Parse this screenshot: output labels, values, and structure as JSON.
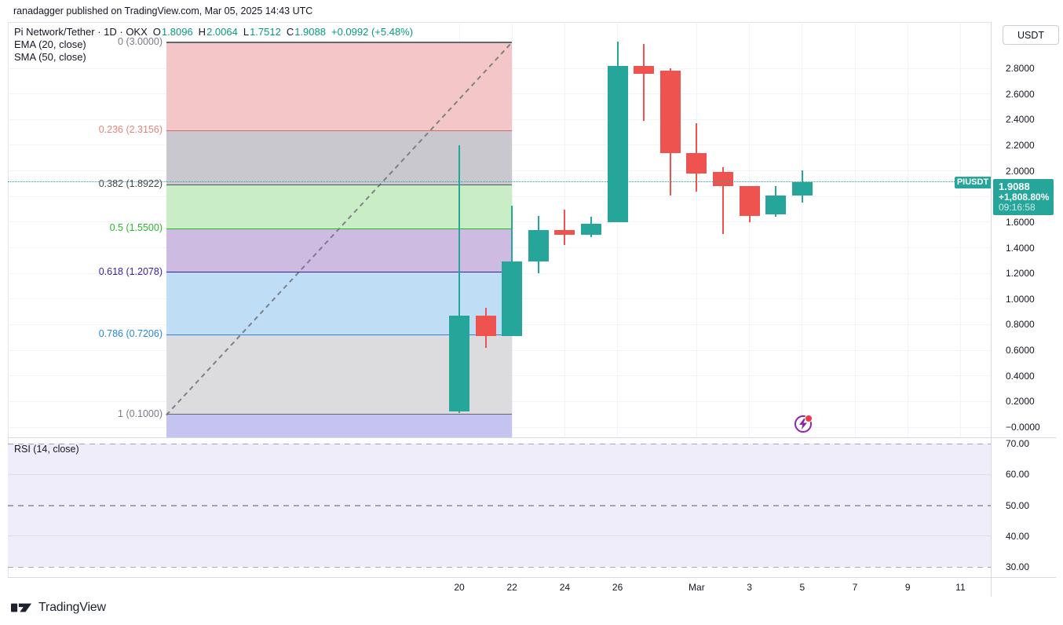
{
  "attribution": "ranadagger published on TradingView.com, Mar 05, 2025 14:43 UTC",
  "legend": {
    "symbol_text": "Pi Network/Tether · 1D · OKX",
    "o_label": "O",
    "o_value": "1.8096",
    "h_label": "H",
    "h_value": "2.0064",
    "l_label": "L",
    "l_value": "1.7512",
    "c_label": "C",
    "c_value": "1.9088",
    "change_text": "+0.0992 (+5.48%)",
    "ema_label": "EMA (20, close)",
    "sma_label": "SMA (50, close)"
  },
  "price_label": {
    "symbol": "PIUSDT",
    "price": "1.9088",
    "change_pct": "+1,808.80%",
    "countdown": "09:16:58"
  },
  "price_axis": {
    "currency": "USDT",
    "ticks": [
      {
        "label": "2.8000",
        "value": 2.8
      },
      {
        "label": "2.6000",
        "value": 2.6
      },
      {
        "label": "2.4000",
        "value": 2.4
      },
      {
        "label": "2.2000",
        "value": 2.2
      },
      {
        "label": "2.0000",
        "value": 2.0
      },
      {
        "label": "1.6000",
        "value": 1.6
      },
      {
        "label": "1.4000",
        "value": 1.4
      },
      {
        "label": "1.2000",
        "value": 1.2
      },
      {
        "label": "1.0000",
        "value": 1.0
      },
      {
        "label": "0.8000",
        "value": 0.8
      },
      {
        "label": "0.6000",
        "value": 0.6
      },
      {
        "label": "0.4000",
        "value": 0.4
      },
      {
        "label": "0.2000",
        "value": 0.2
      },
      {
        "label": "−0.0000",
        "value": 0.0
      }
    ]
  },
  "footer": {
    "logo_text": "TradingView"
  },
  "colors": {
    "up": "#26a69a",
    "down": "#ef5350",
    "accent_text": "#089981",
    "price_line": "#26a69a",
    "grid": "#f0f3fa",
    "axis_text": "#131722",
    "flash_purple": "#8e24aa",
    "alert_red": "#f23645",
    "rsi_fill": "#efedf9"
  },
  "chart_data": {
    "type": "candlestick",
    "title": "Pi Network/Tether · 1D · OKX",
    "price_range": [
      0.0,
      3.0
    ],
    "grid_step": 0.2,
    "current_price": 1.9088,
    "candles": [
      {
        "date": "Feb 20",
        "o": 0.12,
        "h": 2.2,
        "l": 0.11,
        "c": 0.87
      },
      {
        "date": "Feb 21",
        "o": 0.87,
        "h": 0.93,
        "l": 0.62,
        "c": 0.71
      },
      {
        "date": "Feb 22",
        "o": 0.71,
        "h": 1.73,
        "l": 0.71,
        "c": 1.29
      },
      {
        "date": "Feb 23",
        "o": 1.29,
        "h": 1.65,
        "l": 1.2,
        "c": 1.54
      },
      {
        "date": "Feb 24",
        "o": 1.54,
        "h": 1.7,
        "l": 1.42,
        "c": 1.5
      },
      {
        "date": "Feb 25",
        "o": 1.5,
        "h": 1.64,
        "l": 1.48,
        "c": 1.59
      },
      {
        "date": "Feb 26",
        "o": 1.6,
        "h": 3.01,
        "l": 1.6,
        "c": 2.82
      },
      {
        "date": "Feb 27",
        "o": 2.82,
        "h": 2.99,
        "l": 2.39,
        "c": 2.76
      },
      {
        "date": "Feb 28",
        "o": 2.78,
        "h": 2.8,
        "l": 1.81,
        "c": 2.14
      },
      {
        "date": "Mar 1",
        "o": 2.14,
        "h": 2.37,
        "l": 1.84,
        "c": 1.98
      },
      {
        "date": "Mar 2",
        "o": 1.99,
        "h": 2.03,
        "l": 1.51,
        "c": 1.88
      },
      {
        "date": "Mar 3",
        "o": 1.88,
        "h": 1.88,
        "l": 1.6,
        "c": 1.65
      },
      {
        "date": "Mar 4",
        "o": 1.66,
        "h": 1.88,
        "l": 1.64,
        "c": 1.81
      },
      {
        "date": "Mar 5",
        "o": 1.8096,
        "h": 2.0064,
        "l": 1.7512,
        "c": 1.9088
      }
    ],
    "time_ticks": [
      {
        "label": "20",
        "day": 0
      },
      {
        "label": "22",
        "day": 2
      },
      {
        "label": "24",
        "day": 4
      },
      {
        "label": "26",
        "day": 6
      },
      {
        "label": "Mar",
        "day": 9
      },
      {
        "label": "3",
        "day": 11
      },
      {
        "label": "5",
        "day": 13
      },
      {
        "label": "7",
        "day": 15
      },
      {
        "label": "9",
        "day": 17
      },
      {
        "label": "11",
        "day": 19
      }
    ],
    "fib_retracement": {
      "levels": [
        {
          "level": "0",
          "price": 3.0,
          "label": "0 (3.0000)",
          "text_color": "#787b86",
          "line_color": "#63666e"
        },
        {
          "level": "0.236",
          "price": 2.3156,
          "label": "0.236 (2.3156)",
          "text_color": "#e5837e",
          "line_color": "#d46b66"
        },
        {
          "level": "0.382",
          "price": 1.8922,
          "label": "0.382 (1.8922)",
          "text_color": "#44464f",
          "line_color": "#55585f"
        },
        {
          "level": "0.5",
          "price": 1.55,
          "label": "0.5 (1.5500)",
          "text_color": "#2eb52e",
          "line_color": "#2eb52e"
        },
        {
          "level": "0.618",
          "price": 1.2078,
          "label": "0.618 (1.2078)",
          "text_color": "#3b1e9e",
          "line_color": "#3b1e9e"
        },
        {
          "level": "0.786",
          "price": 0.7206,
          "label": "0.786 (0.7206)",
          "text_color": "#2786e6",
          "line_color": "#2786e6"
        },
        {
          "level": "1",
          "price": 0.1,
          "label": "1 (0.1000)",
          "text_color": "#787b86",
          "line_color": "#63666e"
        }
      ],
      "band_colors": [
        "#f3c6c8",
        "#c9c8ce",
        "#c9edc5",
        "#cdbbe2",
        "#bfddf4",
        "#dcdcde",
        "#c5c3f0"
      ]
    },
    "rsi": {
      "label": "RSI (14, close)",
      "ticks": [
        {
          "label": "70.00",
          "value": 70
        },
        {
          "label": "60.00",
          "value": 60
        },
        {
          "label": "50.00",
          "value": 50
        },
        {
          "label": "40.00",
          "value": 40
        },
        {
          "label": "30.00",
          "value": 30
        }
      ],
      "dashed_levels": [
        70,
        50,
        30
      ],
      "range": [
        30,
        70
      ],
      "series_visible": false
    }
  }
}
